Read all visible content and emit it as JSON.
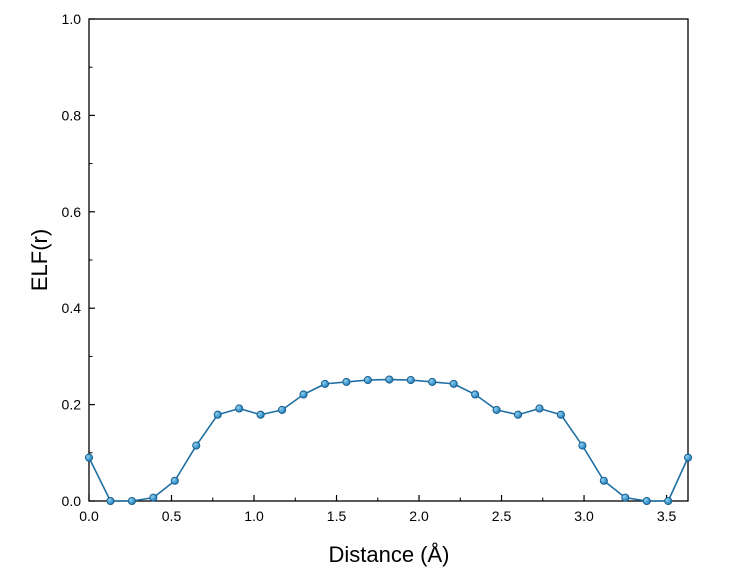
{
  "chart_data": {
    "type": "line",
    "xlabel": "Distance (Å)",
    "ylabel": "ELF(r)",
    "xlim": [
      0,
      3.63
    ],
    "ylim": [
      0,
      1.0
    ],
    "x_ticks": [
      0.0,
      0.5,
      1.0,
      1.5,
      2.0,
      2.5,
      3.0,
      3.5
    ],
    "x_tick_labels": [
      "0.0",
      "0.5",
      "1.0",
      "1.5",
      "2.0",
      "2.5",
      "3.0",
      "3.5"
    ],
    "y_ticks": [
      0.0,
      0.2,
      0.4,
      0.6,
      0.8,
      1.0
    ],
    "y_tick_labels": [
      "0.0",
      "0.2",
      "0.4",
      "0.6",
      "0.8",
      "1.0"
    ],
    "grid": false,
    "legend": "none",
    "colors": {
      "line": "#1f6fa3",
      "marker": "#1f7fbf",
      "marker_highlight": "#8fd0f0",
      "axis": "#000000"
    },
    "series": [
      {
        "x": [
          0.0,
          0.13,
          0.26,
          0.39,
          0.52,
          0.65,
          0.78,
          0.91,
          1.04,
          1.17,
          1.3,
          1.43,
          1.56,
          1.69,
          1.82,
          1.95,
          2.08,
          2.21,
          2.34,
          2.47,
          2.6,
          2.73,
          2.86,
          2.99,
          3.12,
          3.25,
          3.38,
          3.51,
          3.63
        ],
        "y": [
          0.09,
          0.0,
          0.0,
          0.007,
          0.042,
          0.115,
          0.179,
          0.192,
          0.179,
          0.189,
          0.221,
          0.243,
          0.247,
          0.251,
          0.252,
          0.251,
          0.247,
          0.243,
          0.221,
          0.189,
          0.179,
          0.192,
          0.179,
          0.115,
          0.042,
          0.007,
          0.0,
          0.0,
          0.09
        ]
      }
    ]
  }
}
